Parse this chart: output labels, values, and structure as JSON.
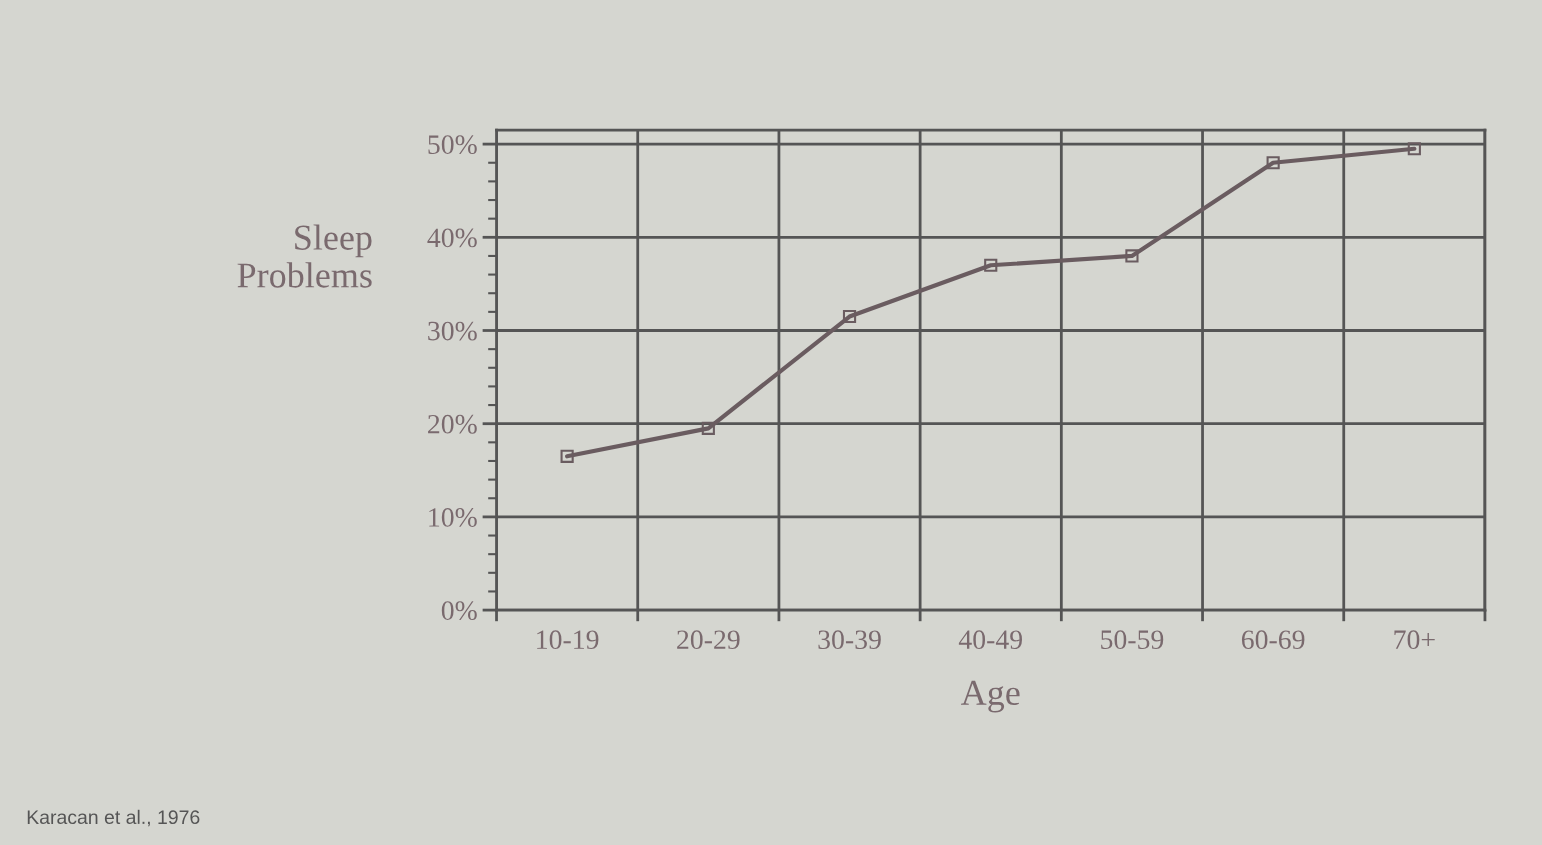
{
  "chart_data": {
    "type": "line",
    "categories": [
      "10-19",
      "20-29",
      "30-39",
      "40-49",
      "50-59",
      "60-69",
      "70+"
    ],
    "series": [
      {
        "color": "#6a5c60",
        "values": [
          16.5,
          19.5,
          31.5,
          37,
          38,
          48,
          49.5
        ]
      }
    ],
    "xlabel": "Age",
    "ylabel": "Sleep\nProblems",
    "ylim": [
      0,
      51.5
    ],
    "yticks": [
      {
        "value": 0,
        "label": "0%"
      },
      {
        "value": 10,
        "label": "10%"
      },
      {
        "value": 20,
        "label": "20%"
      },
      {
        "value": 30,
        "label": "30%"
      },
      {
        "value": 40,
        "label": "40%"
      },
      {
        "value": 50,
        "label": "50%"
      }
    ],
    "grid": true,
    "marker": "square",
    "line_style": "solid",
    "annotations": [
      "Karacan et al., 1976"
    ]
  }
}
